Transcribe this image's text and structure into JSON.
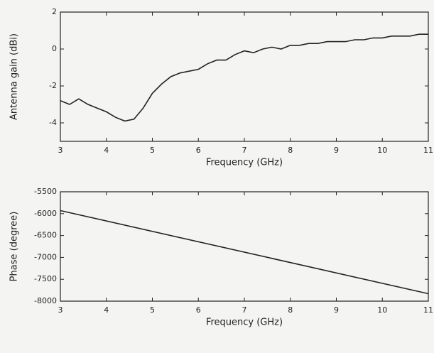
{
  "chart_data": [
    {
      "type": "line",
      "xlabel": "Frequency (GHz)",
      "ylabel": "Antenna gain (dBi)",
      "x": [
        3.0,
        3.2,
        3.4,
        3.6,
        3.8,
        4.0,
        4.2,
        4.4,
        4.6,
        4.8,
        5.0,
        5.2,
        5.4,
        5.6,
        5.8,
        6.0,
        6.2,
        6.4,
        6.6,
        6.8,
        7.0,
        7.2,
        7.4,
        7.6,
        7.8,
        8.0,
        8.2,
        8.4,
        8.6,
        8.8,
        9.0,
        9.2,
        9.4,
        9.6,
        9.8,
        10.0,
        10.2,
        10.4,
        10.6,
        10.8,
        11.0
      ],
      "series": [
        {
          "color": "#222222",
          "values": [
            -2.8,
            -3.0,
            -2.7,
            -3.0,
            -3.2,
            -3.4,
            -3.7,
            -3.9,
            -3.8,
            -3.2,
            -2.4,
            -1.9,
            -1.5,
            -1.3,
            -1.2,
            -1.1,
            -0.8,
            -0.6,
            -0.6,
            -0.3,
            -0.1,
            -0.2,
            0.0,
            0.1,
            0.0,
            0.2,
            0.2,
            0.3,
            0.3,
            0.4,
            0.4,
            0.4,
            0.5,
            0.5,
            0.6,
            0.6,
            0.7,
            0.7,
            0.7,
            0.8,
            0.8
          ]
        }
      ],
      "xlim": [
        3,
        11
      ],
      "xticks": [
        3,
        4,
        5,
        6,
        7,
        8,
        9,
        10,
        11
      ],
      "ylim": [
        -5,
        2
      ],
      "yticks": [
        -4,
        -2,
        0,
        2
      ]
    },
    {
      "type": "line",
      "xlabel": "Frequency (GHz)",
      "ylabel": "Phase (degree)",
      "x": [
        3,
        11
      ],
      "series": [
        {
          "color": "#222222",
          "values": [
            -5930,
            -7830
          ]
        }
      ],
      "xlim": [
        3,
        11
      ],
      "xticks": [
        3,
        4,
        5,
        6,
        7,
        8,
        9,
        10,
        11
      ],
      "ylim": [
        -8000,
        -5500
      ],
      "yticks": [
        -5500,
        -6000,
        -6500,
        -7000,
        -7500,
        -8000
      ]
    }
  ]
}
